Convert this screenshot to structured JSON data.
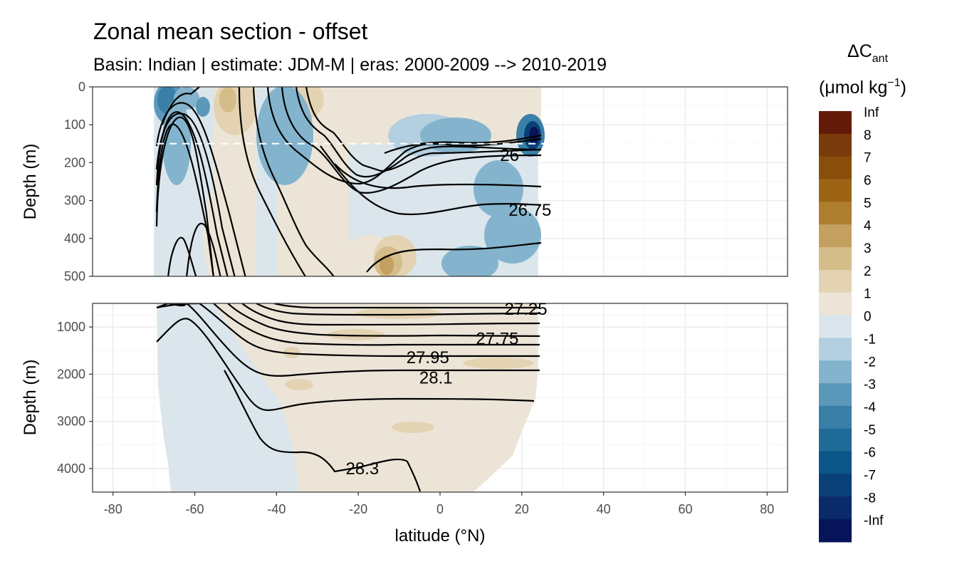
{
  "chart_data": {
    "type": "heatmap",
    "title": "Zonal mean section - offset",
    "subtitle": "Basin: Indian | estimate: JDM-M | eras: 2000-2009 --> 2010-2019",
    "xlabel": "latitude (°N)",
    "ylabel": "Depth (m)",
    "xlim": [
      -85,
      85
    ],
    "x_ticks": [
      -80,
      -60,
      -40,
      -20,
      0,
      20,
      40,
      60,
      80
    ],
    "panels": [
      {
        "name": "upper",
        "ylim": [
          0,
          500
        ],
        "y_ticks": [
          0,
          100,
          200,
          300,
          400,
          500
        ],
        "mixed_layer_dashed_depth": 150,
        "contour_labels": [
          {
            "text": "26",
            "lat": 17,
            "depth": 180
          },
          {
            "text": "26.75",
            "lat": 22,
            "depth": 325
          }
        ]
      },
      {
        "name": "deep",
        "ylim": [
          500,
          4500
        ],
        "y_ticks": [
          1000,
          2000,
          3000,
          4000
        ],
        "contour_labels": [
          {
            "text": "27.25",
            "lat": 21,
            "depth": 620
          },
          {
            "text": "27.75",
            "lat": 14,
            "depth": 1250
          },
          {
            "text": "27.95",
            "lat": -3,
            "depth": 1650
          },
          {
            "text": "28.1",
            "lat": -1,
            "depth": 2080
          },
          {
            "text": "28.3",
            "lat": -19,
            "depth": 4000
          }
        ]
      }
    ],
    "data_extent": {
      "lat_min": -70,
      "lat_max": 24
    },
    "legend": {
      "title_line1": "ΔC",
      "title_sub": "ant",
      "unit_prefix": "(μmol kg",
      "unit_sup": "−1",
      "unit_suffix": ")",
      "labels": [
        "Inf",
        "8",
        "7",
        "6",
        "5",
        "4",
        "3",
        "2",
        "1",
        "0",
        "-1",
        "-2",
        "-3",
        "-4",
        "-5",
        "-6",
        "-7",
        "-8",
        "-Inf"
      ],
      "colors": [
        "#641a08",
        "#7a3b0c",
        "#8a4e0c",
        "#9c6414",
        "#ad7f2e",
        "#c4a060",
        "#d5bd8a",
        "#e3d3b2",
        "#ece5d7",
        "#dbe6ec",
        "#b3cfe0",
        "#84b4cd",
        "#5b98ba",
        "#3a7fa8",
        "#206a98",
        "#0c5588",
        "#0b3f78",
        "#0a2a6a",
        "#08145a"
      ]
    }
  }
}
